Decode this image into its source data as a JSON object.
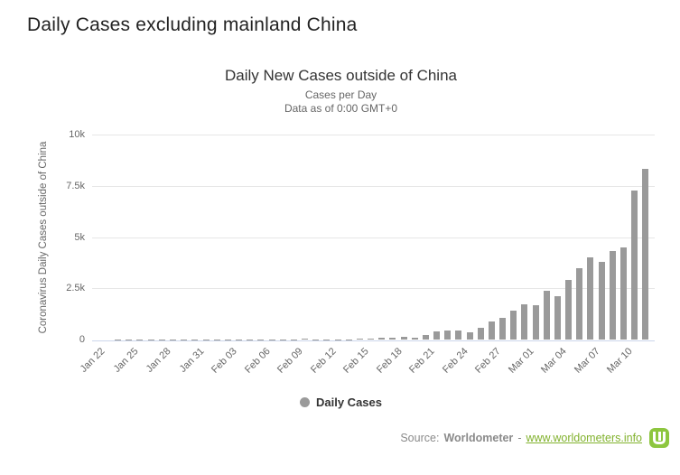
{
  "page": {
    "heading": "Daily Cases excluding mainland China"
  },
  "chart": {
    "title": "Daily New Cases outside of China",
    "subtitle_line1": "Cases per Day",
    "subtitle_line2": "Data as of 0:00 GMT+0",
    "y_axis_title": "Coronavirus Daily Cases outside of China",
    "legend_label": "Daily Cases"
  },
  "footer": {
    "source_label": "Source:",
    "source_name": "Worldometer",
    "separator": "-",
    "link_text": "www.worldometers.info"
  },
  "colors": {
    "bar": "#9a9a9a",
    "legend_marker": "#9a9a9a",
    "grid": "#e6e6e6",
    "axis_line": "#ccd6eb",
    "logo_green": "#8dc63f",
    "link_green": "#82b22e",
    "title_text": "#333333",
    "subtitle_text": "#666666"
  },
  "chart_data": {
    "type": "bar",
    "title": "Daily New Cases outside of China",
    "subtitle": [
      "Cases per Day",
      "Data as of 0:00 GMT+0"
    ],
    "xlabel": "",
    "ylabel": "Coronavirus Daily Cases outside of China",
    "ylim": [
      0,
      10000
    ],
    "yticks": [
      {
        "value": 0,
        "label": "0"
      },
      {
        "value": 2500,
        "label": "2.5k"
      },
      {
        "value": 5000,
        "label": "5k"
      },
      {
        "value": 7500,
        "label": "7.5k"
      },
      {
        "value": 10000,
        "label": "10k"
      }
    ],
    "grid": true,
    "legend": [
      "Daily Cases"
    ],
    "legend_position": "bottom",
    "x_tick_every": 3,
    "categories": [
      "Jan 22",
      "Jan 23",
      "Jan 24",
      "Jan 25",
      "Jan 26",
      "Jan 27",
      "Jan 28",
      "Jan 29",
      "Jan 30",
      "Jan 31",
      "Feb 01",
      "Feb 02",
      "Feb 03",
      "Feb 04",
      "Feb 05",
      "Feb 06",
      "Feb 07",
      "Feb 08",
      "Feb 09",
      "Feb 10",
      "Feb 11",
      "Feb 12",
      "Feb 13",
      "Feb 14",
      "Feb 15",
      "Feb 16",
      "Feb 17",
      "Feb 18",
      "Feb 19",
      "Feb 20",
      "Feb 21",
      "Feb 22",
      "Feb 23",
      "Feb 24",
      "Feb 25",
      "Feb 26",
      "Feb 27",
      "Feb 28",
      "Feb 29",
      "Mar 01",
      "Mar 02",
      "Mar 03",
      "Mar 04",
      "Mar 05",
      "Mar 06",
      "Mar 07",
      "Mar 08",
      "Mar 09",
      "Mar 10",
      "Mar 11",
      "Mar 12"
    ],
    "values": [
      0,
      0,
      10,
      20,
      15,
      15,
      15,
      15,
      20,
      20,
      15,
      15,
      15,
      15,
      15,
      10,
      10,
      10,
      10,
      55,
      10,
      10,
      15,
      15,
      45,
      60,
      75,
      80,
      130,
      95,
      220,
      380,
      425,
      455,
      365,
      575,
      900,
      1050,
      1425,
      1730,
      1655,
      2400,
      2100,
      2930,
      3500,
      4000,
      3800,
      4330,
      4510,
      7250,
      8320
    ]
  }
}
